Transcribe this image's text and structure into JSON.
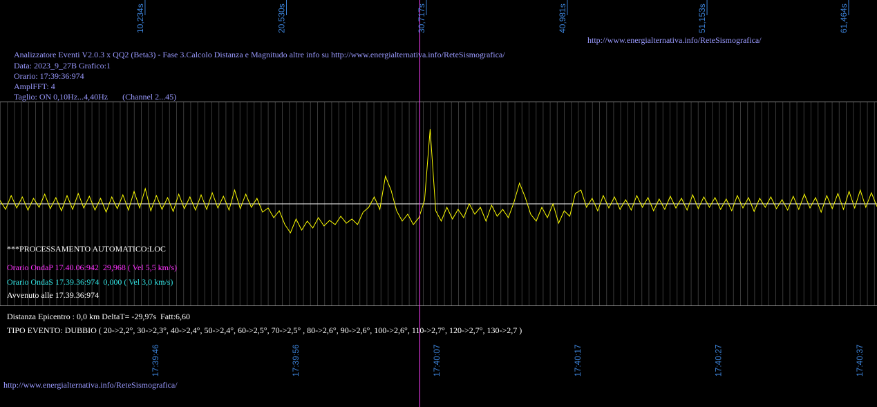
{
  "header": {
    "url": "http://www.energialternativa.info/ReteSismografica/",
    "lines": [
      "Analizzatore Eventi V2.0.3 x QQ2 (Beta3) - Fase 3.Calcolo Distanza e Magnitudo altre info su http://www.energialternativa.info/ReteSismografica/",
      "Data: 2023_9_27B Grafico:1",
      "Orario: 17:39:36:974",
      "AmplFFT: 4",
      "Taglio: ON 0,10Hz...4,40Hz       (Channel 2...45)"
    ]
  },
  "chart_data": {
    "type": "line",
    "xlim": [
      -0.33,
      63.53
    ],
    "xticks": [
      {
        "value": 10.234,
        "label": "10,234s"
      },
      {
        "value": 20.53,
        "label": "20,530s"
      },
      {
        "value": 30.717,
        "label": "30,717s"
      },
      {
        "value": 40.981,
        "label": "40,981s"
      },
      {
        "value": 51.153,
        "label": "51,153s"
      },
      {
        "value": 61.464,
        "label": "61,464s"
      }
    ],
    "x2ticks": [
      {
        "value": 10.99,
        "label": "17:39:46"
      },
      {
        "value": 21.2,
        "label": "17:39:56"
      },
      {
        "value": 31.47,
        "label": "17:40:07"
      },
      {
        "value": 41.73,
        "label": "17:40:17"
      },
      {
        "value": 51.99,
        "label": "17:40:27"
      },
      {
        "value": 62.26,
        "label": "17:40:37"
      }
    ],
    "ylim": [
      -147.5,
      147.5
    ],
    "color": "#ffff00",
    "values": [
      5,
      -8,
      12,
      -6,
      10,
      -9,
      8,
      -5,
      14,
      -7,
      9,
      -10,
      12,
      -8,
      15,
      -6,
      11,
      -9,
      8,
      -12,
      10,
      -7,
      13,
      -9,
      18,
      -6,
      22,
      -10,
      12,
      -8,
      9,
      -11,
      14,
      -7,
      10,
      -9,
      13,
      -8,
      16,
      -6,
      11,
      -9,
      20,
      -7,
      14,
      -5,
      8,
      -12,
      -6,
      -20,
      -10,
      -30,
      -42,
      -22,
      -38,
      -25,
      -35,
      -20,
      -32,
      -24,
      -30,
      -18,
      -28,
      -22,
      -30,
      -12,
      -5,
      10,
      -8,
      40,
      20,
      -10,
      -25,
      -15,
      -30,
      -20,
      5,
      108,
      -10,
      -25,
      -5,
      -22,
      -8,
      -20,
      0,
      -15,
      -5,
      -25,
      -2,
      -18,
      -8,
      -20,
      2,
      30,
      10,
      -15,
      -25,
      -5,
      -20,
      0,
      -28,
      -10,
      -18,
      15,
      20,
      -5,
      8,
      -10,
      12,
      -6,
      10,
      -8,
      6,
      -9,
      12,
      -5,
      9,
      -10,
      7,
      -8,
      11,
      -6,
      8,
      -9,
      13,
      -7,
      10,
      -5,
      9,
      -8,
      7,
      -10,
      12,
      -6,
      9,
      -11,
      8,
      -5,
      10,
      -7,
      6,
      -9,
      11,
      -8,
      14,
      -6,
      9,
      -12,
      12,
      -7,
      15,
      -8,
      18,
      -6,
      20,
      -5,
      16,
      -4
    ]
  },
  "annotations": {
    "processing": "***PROCESSAMENTO AUTOMATICO:LOC",
    "onda_p": "Orario OndaP 17.40.06:942  29,968 ( Vel 5,5 km/s)",
    "onda_s": "Orario OndaS 17.39.36:974  0,000 ( Vel 3,0 km/s)",
    "avvenuto": "Avvenuto alle 17.39.36:974",
    "distanza": "Distanza Epicentro : 0,0 km DeltaT= -29,97s  Fatt:6,60",
    "tipo": "TIPO EVENTO: DUBBIO ( 20->2,2°, 30->2,3°, 40->2,4°, 50->2,4°, 60->2,5°, 70->2,5° , 80->2,6°, 90->2,6°, 100->2,6°, 110->2,7°, 120->2,7°, 130->2,7 )"
  },
  "footer_url": "http://www.energialternativa.info/ReteSismografica/"
}
